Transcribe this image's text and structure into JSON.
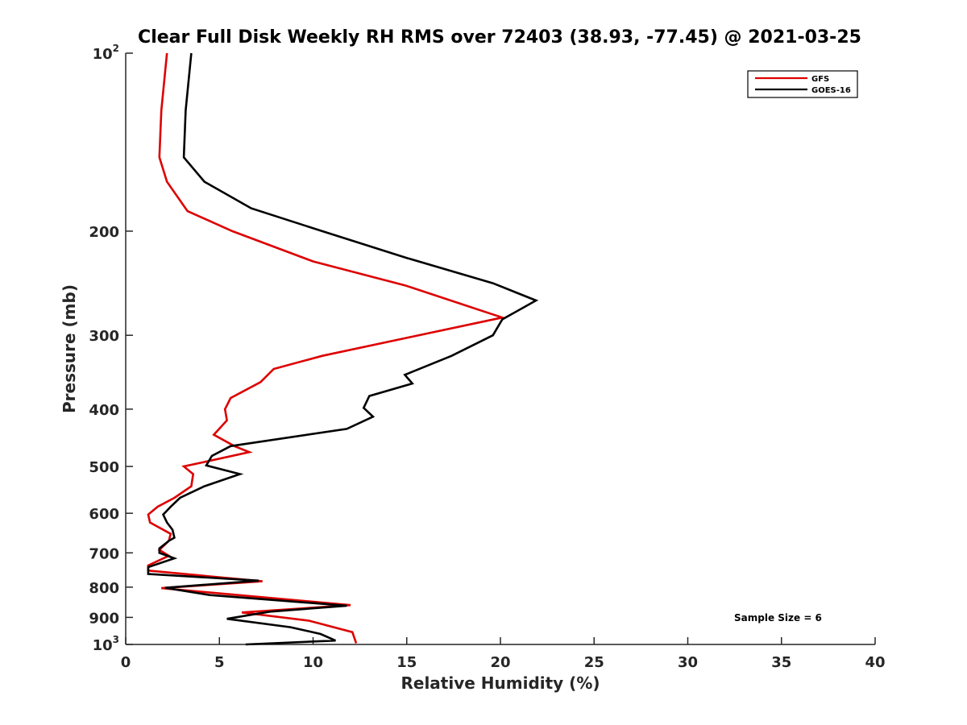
{
  "chart_data": {
    "type": "line",
    "title": "Clear Full Disk Weekly RH RMS over 72403 (38.93, -77.45) @ 2021-03-25",
    "xlabel": "Relative Humidity (%)",
    "ylabel": "Pressure (mb)",
    "xlim": [
      0,
      40
    ],
    "ylim": [
      100,
      1000
    ],
    "y_scale": "log",
    "y_reversed": true,
    "x_ticks": [
      0,
      5,
      10,
      15,
      20,
      25,
      30,
      35,
      40
    ],
    "y_ticks": [
      {
        "value": 100,
        "label": "10",
        "exp": "2"
      },
      {
        "value": 200,
        "label": "200",
        "exp": ""
      },
      {
        "value": 300,
        "label": "300",
        "exp": ""
      },
      {
        "value": 400,
        "label": "400",
        "exp": ""
      },
      {
        "value": 500,
        "label": "500",
        "exp": ""
      },
      {
        "value": 600,
        "label": "600",
        "exp": ""
      },
      {
        "value": 700,
        "label": "700",
        "exp": ""
      },
      {
        "value": 800,
        "label": "800",
        "exp": ""
      },
      {
        "value": 900,
        "label": "900",
        "exp": ""
      },
      {
        "value": 1000,
        "label": "10",
        "exp": "3"
      }
    ],
    "grid": false,
    "legend_position": "top-right",
    "annotation": "Sample Size = 6",
    "series": [
      {
        "name": "GFS",
        "color": "#dd0000",
        "points": [
          [
            2.2,
            100
          ],
          [
            1.9,
            125
          ],
          [
            1.8,
            150
          ],
          [
            2.2,
            165
          ],
          [
            3.3,
            185
          ],
          [
            5.7,
            200
          ],
          [
            10.0,
            225
          ],
          [
            14.9,
            247
          ],
          [
            20.1,
            280
          ],
          [
            15.0,
            303
          ],
          [
            10.5,
            325
          ],
          [
            7.9,
            342
          ],
          [
            7.2,
            360
          ],
          [
            5.6,
            383
          ],
          [
            5.3,
            400
          ],
          [
            5.4,
            418
          ],
          [
            4.7,
            442
          ],
          [
            5.8,
            462
          ],
          [
            6.6,
            473
          ],
          [
            3.1,
            500
          ],
          [
            3.6,
            515
          ],
          [
            3.5,
            540
          ],
          [
            2.6,
            565
          ],
          [
            1.7,
            585
          ],
          [
            1.2,
            603
          ],
          [
            1.3,
            622
          ],
          [
            2.4,
            650
          ],
          [
            2.3,
            668
          ],
          [
            1.8,
            692
          ],
          [
            2.3,
            708
          ],
          [
            1.2,
            735
          ],
          [
            1.2,
            750
          ],
          [
            7.3,
            782
          ],
          [
            1.9,
            803
          ],
          [
            12.0,
            858
          ],
          [
            6.2,
            883
          ],
          [
            9.8,
            912
          ],
          [
            12.1,
            953
          ],
          [
            12.3,
            995
          ]
        ]
      },
      {
        "name": "GOES-16",
        "color": "#000000",
        "points": [
          [
            3.5,
            100
          ],
          [
            3.2,
            125
          ],
          [
            3.1,
            150
          ],
          [
            4.2,
            165
          ],
          [
            6.7,
            183
          ],
          [
            10.5,
            200
          ],
          [
            15.0,
            222
          ],
          [
            19.6,
            245
          ],
          [
            21.9,
            262
          ],
          [
            20.1,
            282
          ],
          [
            19.6,
            300
          ],
          [
            17.4,
            325
          ],
          [
            14.9,
            350
          ],
          [
            15.3,
            362
          ],
          [
            13.0,
            380
          ],
          [
            12.7,
            398
          ],
          [
            13.2,
            412
          ],
          [
            11.8,
            432
          ],
          [
            5.6,
            462
          ],
          [
            4.6,
            480
          ],
          [
            4.3,
            498
          ],
          [
            6.1,
            515
          ],
          [
            4.2,
            540
          ],
          [
            2.9,
            565
          ],
          [
            2.4,
            585
          ],
          [
            2.0,
            603
          ],
          [
            2.2,
            622
          ],
          [
            2.5,
            640
          ],
          [
            2.6,
            660
          ],
          [
            2.3,
            668
          ],
          [
            1.8,
            688
          ],
          [
            1.8,
            700
          ],
          [
            2.6,
            715
          ],
          [
            1.2,
            740
          ],
          [
            1.2,
            760
          ],
          [
            7.1,
            780
          ],
          [
            2.1,
            802
          ],
          [
            4.5,
            825
          ],
          [
            11.8,
            860
          ],
          [
            7.7,
            880
          ],
          [
            5.4,
            905
          ],
          [
            8.8,
            935
          ],
          [
            10.4,
            960
          ],
          [
            11.2,
            985
          ],
          [
            6.4,
            1000
          ]
        ]
      }
    ]
  }
}
